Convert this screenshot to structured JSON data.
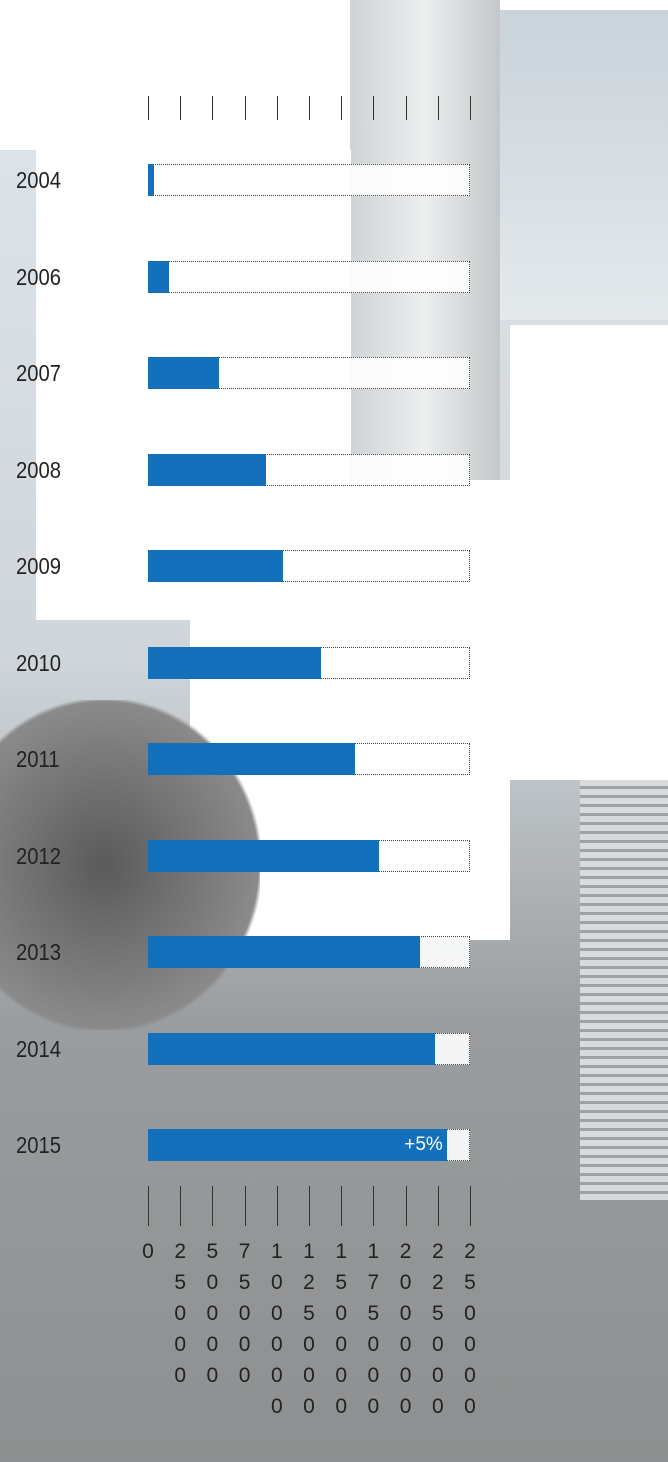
{
  "chart_data": {
    "type": "bar",
    "orientation": "horizontal",
    "categories": [
      "2004",
      "2006",
      "2007",
      "2008",
      "2009",
      "2010",
      "2011",
      "2012",
      "2013",
      "2014",
      "2015"
    ],
    "values": [
      5000,
      16000,
      55000,
      92000,
      105000,
      134000,
      161000,
      179000,
      211000,
      223000,
      232000
    ],
    "value_labels": [
      null,
      null,
      null,
      null,
      null,
      null,
      null,
      null,
      null,
      null,
      "+5%"
    ],
    "color": "#1470bb",
    "xlim": [
      0,
      250000
    ],
    "xticks": [
      0,
      25000,
      50000,
      75000,
      100000,
      125000,
      150000,
      175000,
      200000,
      225000,
      250000
    ]
  }
}
